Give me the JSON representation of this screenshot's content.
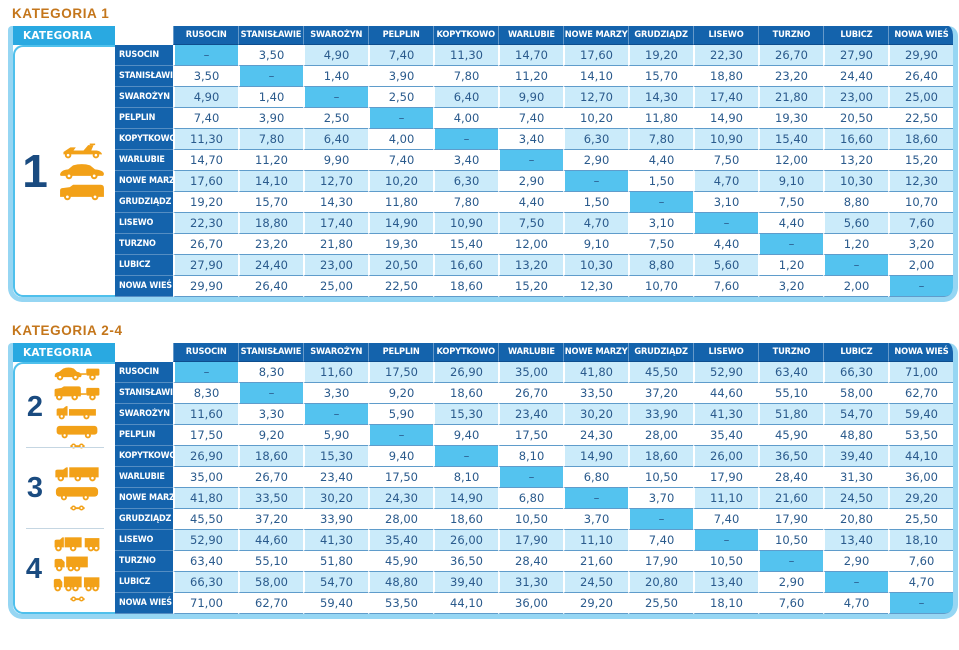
{
  "header_label": "KATEGORIA",
  "dash": "–",
  "stations": [
    "RUSOCIN",
    "STANISŁAWIE",
    "SWAROŻYN",
    "PELPLIN",
    "KOPYTKOWO",
    "WARLUBIE",
    "NOWE MARZY",
    "GRUDZIĄDZ",
    "LISEWO",
    "TURZNO",
    "LUBICZ",
    "NOWA WIEŚ"
  ],
  "colors": {
    "header_bg": "#1463AC",
    "accent_cyan": "#29A9E1",
    "diagonal": "#54C3EF",
    "row_light": "#CBEBFA",
    "value_text": "#2A5A8C",
    "title_orange": "#C4761B",
    "frame": "#96D6F3",
    "icon_orange": "#F2A118",
    "number_navy": "#1A4B80"
  },
  "tables": [
    {
      "title": "KATEGORIA 1",
      "categories": [
        {
          "number": "1",
          "icons": [
            "motorcycle-icon",
            "car-icon",
            "van-icon"
          ]
        }
      ],
      "rows": [
        [
          "–",
          "3,50",
          "4,90",
          "7,40",
          "11,30",
          "14,70",
          "17,60",
          "19,20",
          "22,30",
          "26,70",
          "27,90",
          "29,90"
        ],
        [
          "3,50",
          "–",
          "1,40",
          "3,90",
          "7,80",
          "11,20",
          "14,10",
          "15,70",
          "18,80",
          "23,20",
          "24,40",
          "26,40"
        ],
        [
          "4,90",
          "1,40",
          "–",
          "2,50",
          "6,40",
          "9,90",
          "12,70",
          "14,30",
          "17,40",
          "21,80",
          "23,00",
          "25,00"
        ],
        [
          "7,40",
          "3,90",
          "2,50",
          "–",
          "4,00",
          "7,40",
          "10,20",
          "11,80",
          "14,90",
          "19,30",
          "20,50",
          "22,50"
        ],
        [
          "11,30",
          "7,80",
          "6,40",
          "4,00",
          "–",
          "3,40",
          "6,30",
          "7,80",
          "10,90",
          "15,40",
          "16,60",
          "18,60"
        ],
        [
          "14,70",
          "11,20",
          "9,90",
          "7,40",
          "3,40",
          "–",
          "2,90",
          "4,40",
          "7,50",
          "12,00",
          "13,20",
          "15,20"
        ],
        [
          "17,60",
          "14,10",
          "12,70",
          "10,20",
          "6,30",
          "2,90",
          "–",
          "1,50",
          "4,70",
          "9,10",
          "10,30",
          "12,30"
        ],
        [
          "19,20",
          "15,70",
          "14,30",
          "11,80",
          "7,80",
          "4,40",
          "1,50",
          "–",
          "3,10",
          "7,50",
          "8,80",
          "10,70"
        ],
        [
          "22,30",
          "18,80",
          "17,40",
          "14,90",
          "10,90",
          "7,50",
          "4,70",
          "3,10",
          "–",
          "4,40",
          "5,60",
          "7,60"
        ],
        [
          "26,70",
          "23,20",
          "21,80",
          "19,30",
          "15,40",
          "12,00",
          "9,10",
          "7,50",
          "4,40",
          "–",
          "1,20",
          "3,20"
        ],
        [
          "27,90",
          "24,40",
          "23,00",
          "20,50",
          "16,60",
          "13,20",
          "10,30",
          "8,80",
          "5,60",
          "1,20",
          "–",
          "2,00"
        ],
        [
          "29,90",
          "26,40",
          "25,00",
          "22,50",
          "18,60",
          "15,20",
          "12,30",
          "10,70",
          "7,60",
          "3,20",
          "2,00",
          "–"
        ]
      ]
    },
    {
      "title": "KATEGORIA 2-4",
      "categories": [
        {
          "number": "2",
          "icons": [
            "car-trailer-icon",
            "van-trailer-icon",
            "pickup-icon",
            "minibus-icon",
            "axle-icon"
          ]
        },
        {
          "number": "3",
          "icons": [
            "truck-icon",
            "bus-icon",
            "axle-icon"
          ]
        },
        {
          "number": "4",
          "icons": [
            "truck-trailer-icon",
            "semi-truck-icon",
            "road-train-icon",
            "axle-icon"
          ]
        }
      ],
      "rows": [
        [
          "–",
          "8,30",
          "11,60",
          "17,50",
          "26,90",
          "35,00",
          "41,80",
          "45,50",
          "52,90",
          "63,40",
          "66,30",
          "71,00"
        ],
        [
          "8,30",
          "–",
          "3,30",
          "9,20",
          "18,60",
          "26,70",
          "33,50",
          "37,20",
          "44,60",
          "55,10",
          "58,00",
          "62,70"
        ],
        [
          "11,60",
          "3,30",
          "–",
          "5,90",
          "15,30",
          "23,40",
          "30,20",
          "33,90",
          "41,30",
          "51,80",
          "54,70",
          "59,40"
        ],
        [
          "17,50",
          "9,20",
          "5,90",
          "–",
          "9,40",
          "17,50",
          "24,30",
          "28,00",
          "35,40",
          "45,90",
          "48,80",
          "53,50"
        ],
        [
          "26,90",
          "18,60",
          "15,30",
          "9,40",
          "–",
          "8,10",
          "14,90",
          "18,60",
          "26,00",
          "36,50",
          "39,40",
          "44,10"
        ],
        [
          "35,00",
          "26,70",
          "23,40",
          "17,50",
          "8,10",
          "–",
          "6,80",
          "10,50",
          "17,90",
          "28,40",
          "31,30",
          "36,00"
        ],
        [
          "41,80",
          "33,50",
          "30,20",
          "24,30",
          "14,90",
          "6,80",
          "–",
          "3,70",
          "11,10",
          "21,60",
          "24,50",
          "29,20"
        ],
        [
          "45,50",
          "37,20",
          "33,90",
          "28,00",
          "18,60",
          "10,50",
          "3,70",
          "–",
          "7,40",
          "17,90",
          "20,80",
          "25,50"
        ],
        [
          "52,90",
          "44,60",
          "41,30",
          "35,40",
          "26,00",
          "17,90",
          "11,10",
          "7,40",
          "–",
          "10,50",
          "13,40",
          "18,10"
        ],
        [
          "63,40",
          "55,10",
          "51,80",
          "45,90",
          "36,50",
          "28,40",
          "21,60",
          "17,90",
          "10,50",
          "–",
          "2,90",
          "7,60"
        ],
        [
          "66,30",
          "58,00",
          "54,70",
          "48,80",
          "39,40",
          "31,30",
          "24,50",
          "20,80",
          "13,40",
          "2,90",
          "–",
          "4,70"
        ],
        [
          "71,00",
          "62,70",
          "59,40",
          "53,50",
          "44,10",
          "36,00",
          "29,20",
          "25,50",
          "18,10",
          "7,60",
          "4,70",
          "–"
        ]
      ]
    }
  ]
}
